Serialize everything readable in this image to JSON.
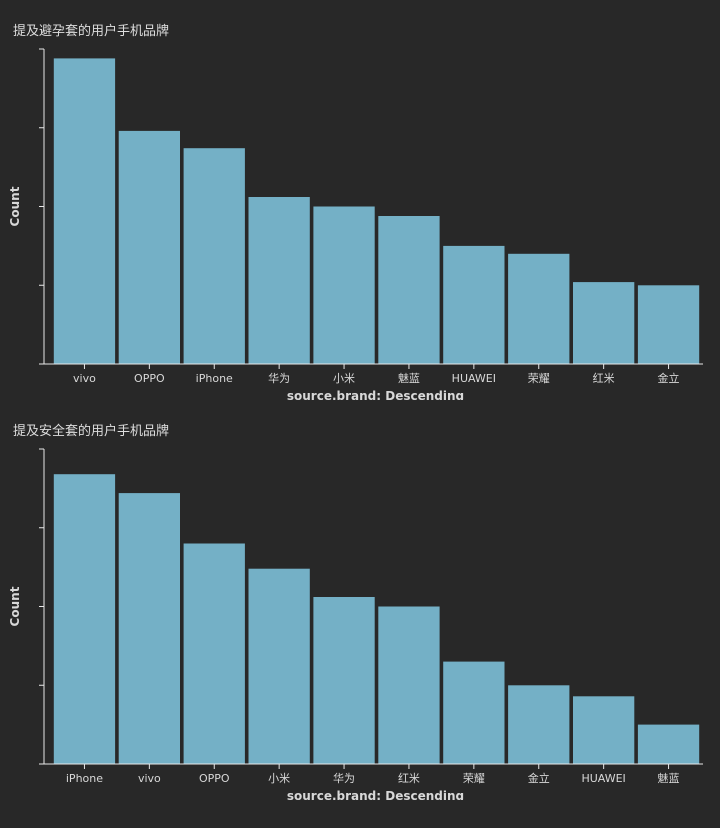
{
  "chart_data": [
    {
      "type": "bar",
      "title": "提及避孕套的用户手机品牌",
      "xlabel": "source.brand: Descending",
      "ylabel": "Count",
      "categories": [
        "vivo",
        "OPPO",
        "iPhone",
        "华为",
        "小米",
        "魅蓝",
        "HUAWEI",
        "荣耀",
        "红米",
        "金立"
      ],
      "values": [
        97,
        74,
        68.5,
        53,
        50,
        47,
        37.5,
        35,
        26,
        25
      ],
      "ylim": [
        0,
        100
      ],
      "y_tick_values": [
        0,
        25,
        50,
        75,
        100
      ],
      "y_tick_labels_shown": false,
      "grid": false,
      "bar_color": "#74b0c6"
    },
    {
      "type": "bar",
      "title": "提及安全套的用户手机品牌",
      "xlabel": "source.brand: Descending",
      "ylabel": "Count",
      "categories": [
        "iPhone",
        "vivo",
        "OPPO",
        "小米",
        "华为",
        "红米",
        "荣耀",
        "金立",
        "HUAWEI",
        "魅蓝"
      ],
      "values": [
        92,
        86,
        70,
        62,
        53,
        50,
        32.5,
        25,
        21.5,
        12.5
      ],
      "ylim": [
        0,
        100
      ],
      "y_tick_values": [
        0,
        25,
        50,
        75,
        100
      ],
      "y_tick_labels_shown": false,
      "grid": false,
      "bar_color": "#74b0c6"
    }
  ],
  "colors": {
    "background": "#282828",
    "bar": "#74b0c6",
    "axis": "#e8e8e8",
    "text": "#d8d8d8"
  }
}
